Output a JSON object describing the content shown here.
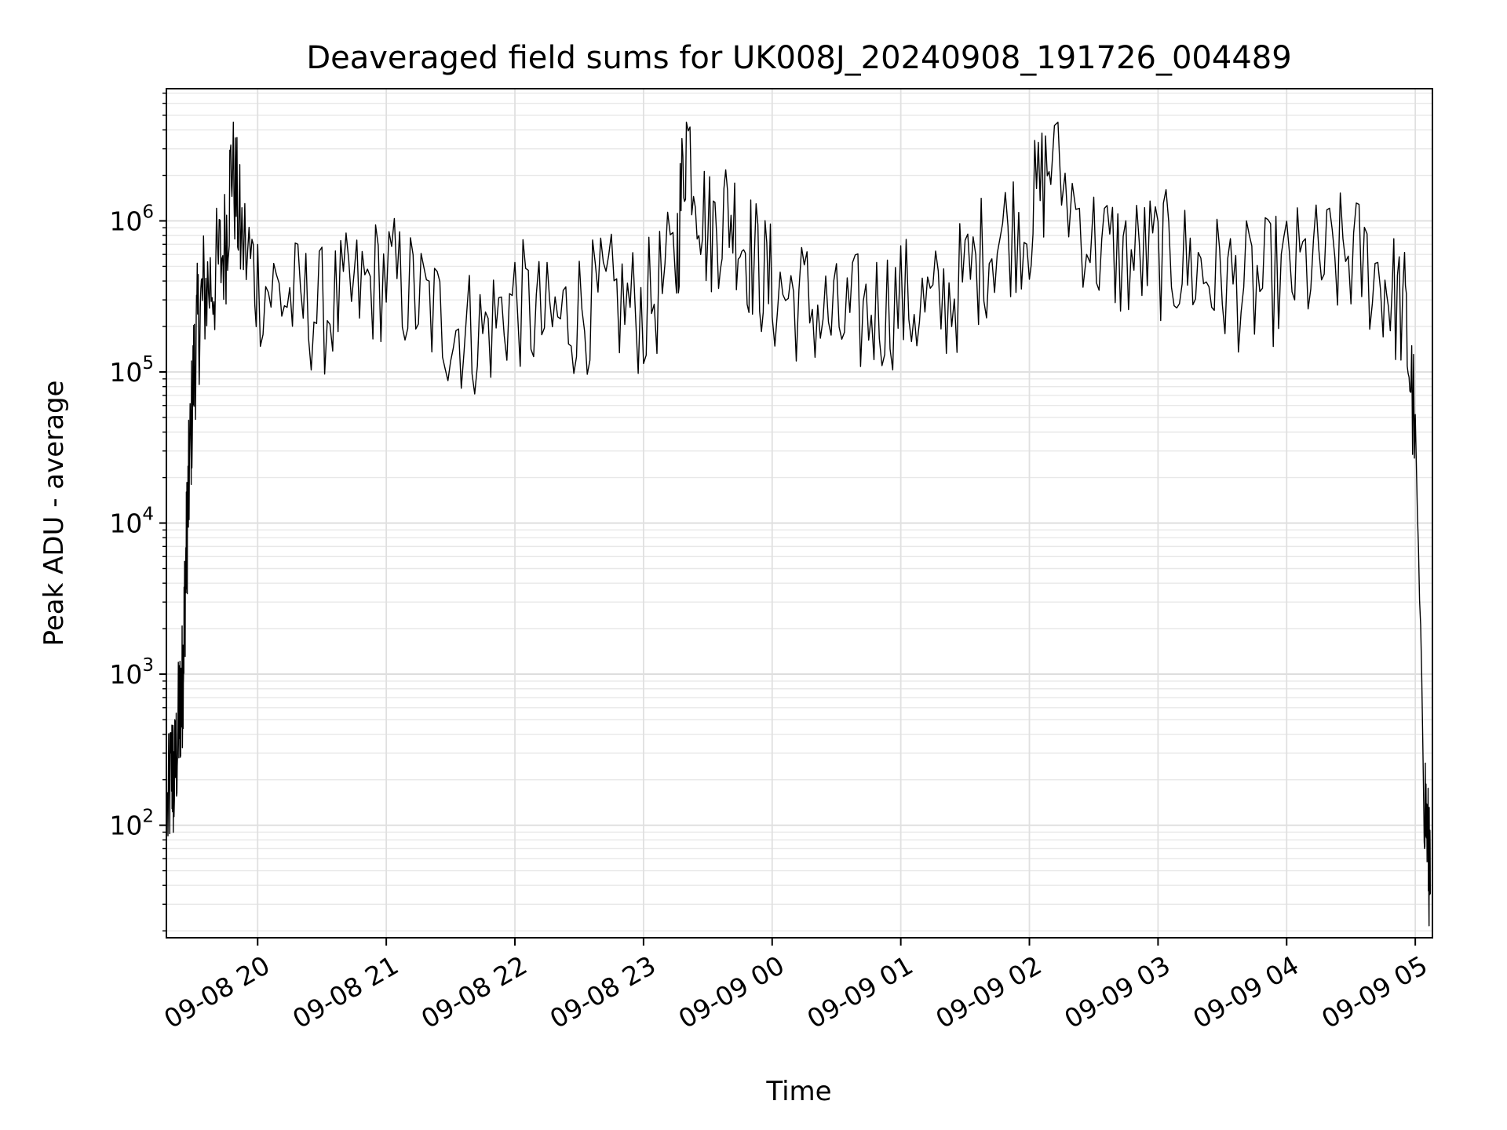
{
  "chart_data": {
    "type": "line",
    "title": "Deaveraged field sums for UK008J_20240908_191726_004489",
    "xlabel": "Time",
    "ylabel": "Peak ADU - average",
    "yscale": "log",
    "ylim": [
      18,
      7500000
    ],
    "xlim": [
      "2024-09-08 19:17:26",
      "2024-09-09 05:08:00"
    ],
    "grid": "on (major and minor)",
    "line_color": "#000000",
    "x_ticks": [
      {
        "label": "09-08 20",
        "t": "2024-09-08 20:00"
      },
      {
        "label": "09-08 21",
        "t": "2024-09-08 21:00"
      },
      {
        "label": "09-08 22",
        "t": "2024-09-08 22:00"
      },
      {
        "label": "09-08 23",
        "t": "2024-09-08 23:00"
      },
      {
        "label": "09-09 00",
        "t": "2024-09-09 00:00"
      },
      {
        "label": "09-09 01",
        "t": "2024-09-09 01:00"
      },
      {
        "label": "09-09 02",
        "t": "2024-09-09 02:00"
      },
      {
        "label": "09-09 03",
        "t": "2024-09-09 03:00"
      },
      {
        "label": "09-09 04",
        "t": "2024-09-09 04:00"
      },
      {
        "label": "09-09 05",
        "t": "2024-09-09 05:00"
      }
    ],
    "y_ticks": [
      {
        "base": "10",
        "exp": "2",
        "value": 100
      },
      {
        "base": "10",
        "exp": "3",
        "value": 1000
      },
      {
        "base": "10",
        "exp": "4",
        "value": 10000
      },
      {
        "base": "10",
        "exp": "5",
        "value": 100000
      },
      {
        "base": "10",
        "exp": "6",
        "value": 1000000
      }
    ],
    "series": [
      {
        "values": [
          [
            "2024-09-08 19:18",
            120
          ],
          [
            "2024-09-08 19:20",
            250
          ],
          [
            "2024-09-08 19:21",
            180
          ],
          [
            "2024-09-08 19:23",
            450
          ],
          [
            "2024-09-08 19:24",
            650
          ],
          [
            "2024-09-08 19:25",
            900
          ],
          [
            "2024-09-08 19:26",
            3000
          ],
          [
            "2024-09-08 19:27",
            8000
          ],
          [
            "2024-09-08 19:28",
            20000
          ],
          [
            "2024-09-08 19:30",
            90000
          ],
          [
            "2024-09-08 19:32",
            200000
          ],
          [
            "2024-09-08 19:35",
            350000
          ],
          [
            "2024-09-08 19:40",
            420000
          ],
          [
            "2024-09-08 19:45",
            700000
          ],
          [
            "2024-09-08 19:48",
            2600000
          ],
          [
            "2024-09-08 19:52",
            800000
          ],
          [
            "2024-09-08 20:00",
            400000
          ],
          [
            "2024-09-08 20:15",
            300000
          ],
          [
            "2024-09-08 20:30",
            250000
          ],
          [
            "2024-09-08 20:45",
            320000
          ],
          [
            "2024-09-08 21:00",
            450000
          ],
          [
            "2024-09-08 21:15",
            300000
          ],
          [
            "2024-09-08 21:30",
            200000
          ],
          [
            "2024-09-08 21:45",
            180000
          ],
          [
            "2024-09-08 22:00",
            300000
          ],
          [
            "2024-09-08 22:15",
            200000
          ],
          [
            "2024-09-08 22:30",
            260000
          ],
          [
            "2024-09-08 22:45",
            300000
          ],
          [
            "2024-09-08 23:00",
            250000
          ],
          [
            "2024-09-08 23:15",
            500000
          ],
          [
            "2024-09-08 23:20",
            3900000
          ],
          [
            "2024-09-08 23:30",
            800000
          ],
          [
            "2024-09-08 23:40",
            1200000
          ],
          [
            "2024-09-08 23:50",
            600000
          ],
          [
            "2024-09-09 00:00",
            350000
          ],
          [
            "2024-09-09 00:15",
            300000
          ],
          [
            "2024-09-09 00:30",
            200000
          ],
          [
            "2024-09-09 00:45",
            250000
          ],
          [
            "2024-09-09 01:00",
            300000
          ],
          [
            "2024-09-09 01:15",
            250000
          ],
          [
            "2024-09-09 01:30",
            400000
          ],
          [
            "2024-09-09 01:45",
            800000
          ],
          [
            "2024-09-09 02:00",
            1000000
          ],
          [
            "2024-09-09 02:10",
            2600000
          ],
          [
            "2024-09-09 02:30",
            700000
          ],
          [
            "2024-09-09 02:45",
            550000
          ],
          [
            "2024-09-09 03:00",
            600000
          ],
          [
            "2024-09-09 03:15",
            500000
          ],
          [
            "2024-09-09 03:30",
            400000
          ],
          [
            "2024-09-09 03:45",
            350000
          ],
          [
            "2024-09-09 04:00",
            450000
          ],
          [
            "2024-09-09 04:15",
            500000
          ],
          [
            "2024-09-09 04:30",
            600000
          ],
          [
            "2024-09-09 04:45",
            400000
          ],
          [
            "2024-09-09 04:55",
            250000
          ],
          [
            "2024-09-09 05:00",
            40000
          ],
          [
            "2024-09-09 05:02",
            3000
          ],
          [
            "2024-09-09 05:04",
            200
          ],
          [
            "2024-09-09 05:06",
            70
          ],
          [
            "2024-09-09 05:07",
            35
          ]
        ]
      }
    ]
  }
}
